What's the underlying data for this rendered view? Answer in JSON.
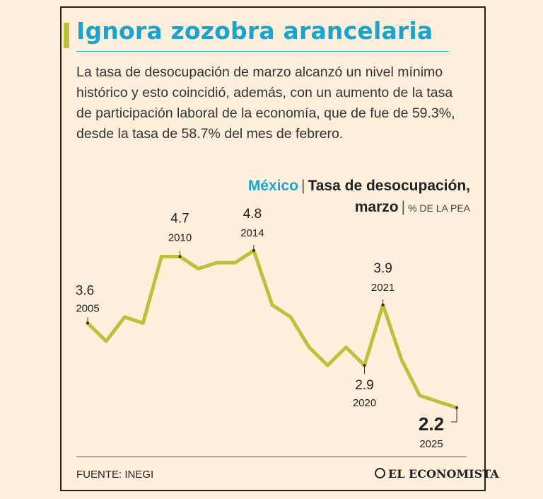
{
  "header": {
    "title": "Ignora zozobra arancelaria",
    "lead": "La tasa de desocupación de marzo alcanzó un nivel mínimo histórico y esto coincidió, además, con un aumento de la tasa de participación laboral de la economía, que de fue de 59.3%, desde la tasa de 58.7% del mes de febrero."
  },
  "chart_header": {
    "country": "México",
    "separator": "|",
    "line1": "Tasa de desocupación,",
    "line2": "marzo",
    "unit": "% DE LA PEA"
  },
  "footer": {
    "source": "FUENTE: INEGI",
    "brand": "EL ECONOMISTA"
  },
  "colors": {
    "background": "#fdefdc",
    "title": "#1aa3cc",
    "accent": "#b9c23a",
    "line": "#b9c23a"
  },
  "chart_data": {
    "type": "line",
    "title": "Tasa de desocupación, marzo",
    "unit": "% DE LA PEA",
    "x": [
      2005,
      2006,
      2007,
      2008,
      2009,
      2010,
      2011,
      2012,
      2013,
      2014,
      2015,
      2016,
      2017,
      2018,
      2019,
      2020,
      2021,
      2022,
      2023,
      2024,
      2025
    ],
    "series": [
      {
        "values": [
          3.6,
          3.3,
          3.7,
          3.6,
          4.7,
          4.7,
          4.5,
          4.6,
          4.6,
          4.8,
          3.9,
          3.7,
          3.2,
          2.9,
          3.2,
          2.9,
          3.9,
          3.0,
          2.4,
          2.3,
          2.2
        ]
      }
    ],
    "annotations": [
      {
        "year": 2005,
        "value_label": "3.6",
        "year_label": "2005"
      },
      {
        "year": 2010,
        "value_label": "4.7",
        "year_label": "2010"
      },
      {
        "year": 2014,
        "value_label": "4.8",
        "year_label": "2014"
      },
      {
        "year": 2020,
        "value_label": "2.9",
        "year_label": "2020"
      },
      {
        "year": 2021,
        "value_label": "3.9",
        "year_label": "2021"
      },
      {
        "year": 2025,
        "value_label": "2.2",
        "year_label": "2025"
      }
    ],
    "ylim": [
      2.0,
      5.0
    ],
    "grid": false
  }
}
